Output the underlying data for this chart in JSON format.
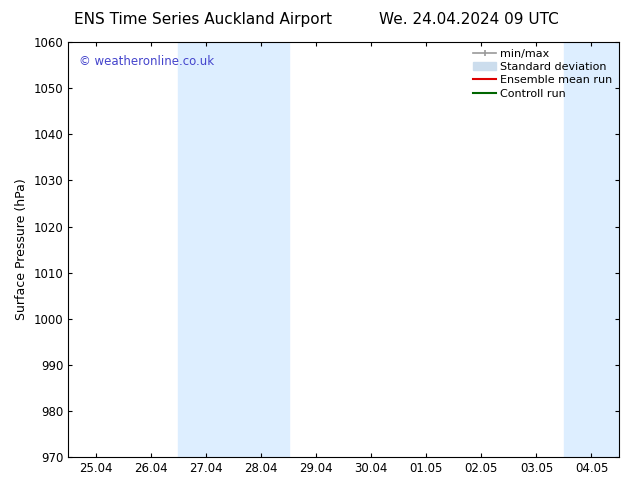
{
  "title_left": "ENS Time Series Auckland Airport",
  "title_right": "We. 24.04.2024 09 UTC",
  "ylabel": "Surface Pressure (hPa)",
  "ylim": [
    970,
    1060
  ],
  "yticks": [
    970,
    980,
    990,
    1000,
    1010,
    1020,
    1030,
    1040,
    1050,
    1060
  ],
  "x_tick_labels": [
    "25.04",
    "26.04",
    "27.04",
    "28.04",
    "29.04",
    "30.04",
    "01.05",
    "02.05",
    "03.05",
    "04.05"
  ],
  "x_tick_positions": [
    0,
    1,
    2,
    3,
    4,
    5,
    6,
    7,
    8,
    9
  ],
  "xlim": [
    -0.5,
    9.5
  ],
  "shade_regions": [
    {
      "x_start": 1.5,
      "x_end": 3.5,
      "color": "#ddeeff"
    },
    {
      "x_start": 8.5,
      "x_end": 9.5,
      "color": "#ddeeff"
    }
  ],
  "watermark_text": "© weatheronline.co.uk",
  "watermark_color": "#4444cc",
  "legend_entries": [
    {
      "label": "min/max",
      "color": "#999999",
      "lw": 1.2
    },
    {
      "label": "Standard deviation",
      "color": "#ccdded",
      "lw": 7
    },
    {
      "label": "Ensemble mean run",
      "color": "#dd0000",
      "lw": 1.5
    },
    {
      "label": "Controll run",
      "color": "#006600",
      "lw": 1.5
    }
  ],
  "bg_color": "#ffffff",
  "plot_bg_color": "#ffffff",
  "border_color": "#000000",
  "title_fontsize": 11,
  "label_fontsize": 9,
  "tick_fontsize": 8.5,
  "watermark_fontsize": 8.5,
  "legend_fontsize": 8
}
